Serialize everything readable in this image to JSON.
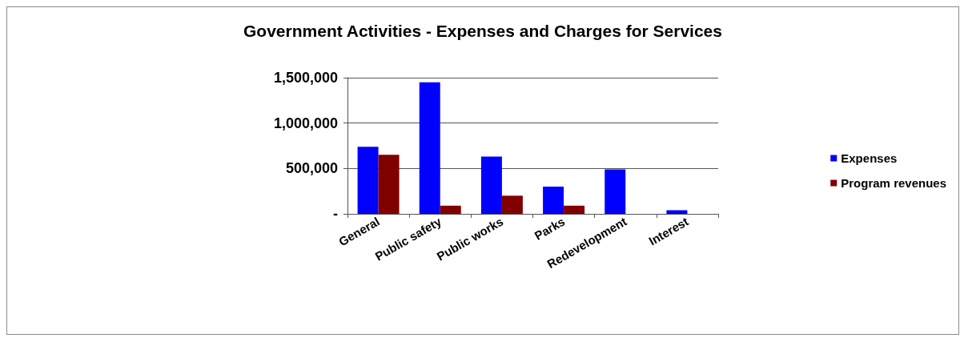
{
  "chart_data": {
    "type": "bar",
    "title": "Government Activities - Expenses and Charges for Services",
    "categories": [
      "General",
      "Public safety",
      "Public works",
      "Parks",
      "Redevelopment",
      "Interest"
    ],
    "series": [
      {
        "name": "Expenses",
        "color": "#0000ff",
        "values": [
          740000,
          1450000,
          630000,
          300000,
          490000,
          40000
        ]
      },
      {
        "name": "Program revenues",
        "color": "#800000",
        "values": [
          650000,
          90000,
          200000,
          90000,
          null,
          null
        ]
      }
    ],
    "ylim": [
      0,
      1500000
    ],
    "yticks": [
      {
        "value": 0,
        "label": "-"
      },
      {
        "value": 500000,
        "label": "500,000"
      },
      {
        "value": 1000000,
        "label": "1,000,000"
      },
      {
        "value": 1500000,
        "label": "1,500,000"
      }
    ],
    "grid": "y",
    "legend": "right"
  }
}
